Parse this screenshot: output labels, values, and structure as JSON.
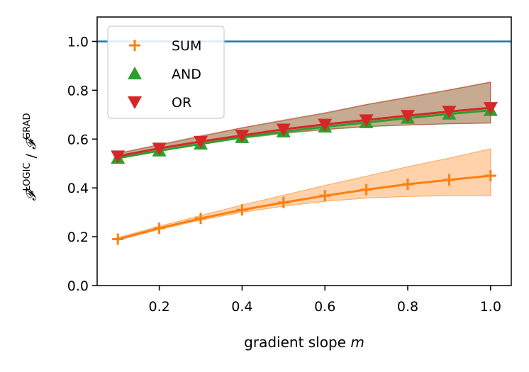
{
  "chart_data": {
    "type": "line",
    "title": "",
    "xlabel_prefix": "gradient slope ",
    "xlabel_var": "m",
    "ylabel_num": "LOGIC",
    "ylabel_den": "GRAD",
    "ylabel_sym": "𝓕",
    "ylabel_sep": " / ",
    "xlim": [
      0.05,
      1.05
    ],
    "ylim": [
      0.0,
      1.1
    ],
    "xticks": [
      0.2,
      0.4,
      0.6,
      0.8,
      1.0
    ],
    "yticks": [
      0.0,
      0.2,
      0.4,
      0.6,
      0.8,
      1.0
    ],
    "xtick_labels": [
      "0.2",
      "0.4",
      "0.6",
      "0.8",
      "1.0"
    ],
    "ytick_labels": [
      "0.0",
      "0.2",
      "0.4",
      "0.6",
      "0.8",
      "1.0"
    ],
    "reference_line": {
      "y": 1.0,
      "color": "#1f77b4"
    },
    "x": [
      0.1,
      0.2,
      0.3,
      0.4,
      0.5,
      0.6,
      0.7,
      0.8,
      0.9,
      1.0
    ],
    "series": [
      {
        "name": "SUM",
        "marker": "plus",
        "color": "#ff7f0e",
        "values": [
          0.19,
          0.235,
          0.275,
          0.31,
          0.34,
          0.368,
          0.393,
          0.415,
          0.433,
          0.45
        ],
        "band_low": [
          0.185,
          0.23,
          0.268,
          0.3,
          0.325,
          0.345,
          0.358,
          0.365,
          0.368,
          0.368
        ],
        "band_high": [
          0.196,
          0.243,
          0.287,
          0.33,
          0.37,
          0.41,
          0.448,
          0.487,
          0.522,
          0.56
        ]
      },
      {
        "name": "AND",
        "marker": "triangle-up",
        "color": "#2ca02c",
        "values": [
          0.522,
          0.552,
          0.58,
          0.607,
          0.63,
          0.65,
          0.668,
          0.686,
          0.703,
          0.718
        ],
        "band_low": [
          0.52,
          0.55,
          0.578,
          0.603,
          0.622,
          0.638,
          0.65,
          0.657,
          0.662,
          0.665
        ],
        "band_high": [
          0.54,
          0.575,
          0.61,
          0.645,
          0.675,
          0.705,
          0.74,
          0.77,
          0.8,
          0.832
        ]
      },
      {
        "name": "OR",
        "marker": "triangle-down",
        "color": "#d62728",
        "values": [
          0.53,
          0.562,
          0.59,
          0.615,
          0.64,
          0.66,
          0.678,
          0.696,
          0.713,
          0.728
        ],
        "band_low": [
          0.522,
          0.552,
          0.58,
          0.605,
          0.625,
          0.64,
          0.652,
          0.658,
          0.663,
          0.666
        ],
        "band_high": [
          0.542,
          0.578,
          0.613,
          0.647,
          0.678,
          0.708,
          0.742,
          0.772,
          0.802,
          0.834
        ]
      }
    ],
    "legend_position": "top-left"
  }
}
